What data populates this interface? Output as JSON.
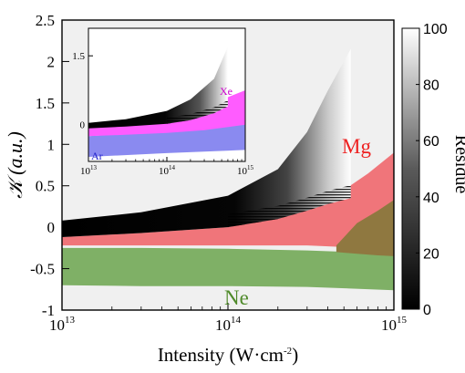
{
  "chart_data": [
    {
      "type": "area",
      "xlabel": "Intensity (W·cm",
      "xlabel_sup": "-2",
      "xlabel_close": ")",
      "ylabel": "𝒦 (a.u.)",
      "xscale": "log",
      "xlim": [
        10000000000000.0,
        1000000000000000.0
      ],
      "ylim": [
        -1,
        2.5
      ],
      "x_ticks": [
        {
          "base": "10",
          "exp": "13"
        },
        {
          "base": "10",
          "exp": "14"
        },
        {
          "base": "10",
          "exp": "15"
        }
      ],
      "y_ticks": [
        "-1",
        "-0.5",
        "0",
        "0.5",
        "1",
        "1.5",
        "2",
        "2.5"
      ],
      "background": "#f0f0f0",
      "series": [
        {
          "name": "Ne",
          "color": "#7fb066",
          "x": [
            10000000000000.0,
            30000000000000.0,
            100000000000000.0,
            300000000000000.0,
            1000000000000000.0
          ],
          "upper": [
            -0.25,
            -0.25,
            -0.26,
            -0.28,
            -0.32
          ],
          "lower": [
            -0.7,
            -0.71,
            -0.71,
            -0.72,
            -0.76
          ]
        },
        {
          "name": "Mg",
          "color": "#f0757a",
          "x": [
            10000000000000.0,
            30000000000000.0,
            100000000000000.0,
            200000000000000.0,
            300000000000000.0,
            500000000000000.0,
            700000000000000.0,
            1000000000000000.0
          ],
          "upper": [
            -0.12,
            -0.07,
            0.0,
            0.12,
            0.22,
            0.45,
            0.65,
            0.9
          ],
          "lower": [
            -0.22,
            -0.22,
            -0.22,
            -0.22,
            -0.22,
            -0.24,
            -0.26,
            -0.28
          ]
        },
        {
          "name": "Mg-overlap",
          "color": "#8f7840",
          "x": [
            450000000000000.0,
            600000000000000.0,
            800000000000000.0,
            1000000000000000.0
          ],
          "upper": [
            -0.22,
            0.05,
            0.2,
            0.33
          ],
          "lower": [
            -0.3,
            -0.32,
            -0.34,
            -0.35
          ]
        },
        {
          "name": "residue-map",
          "x": [
            10000000000000.0,
            30000000000000.0,
            100000000000000.0,
            200000000000000.0,
            300000000000000.0,
            400000000000000.0,
            550000000000000.0
          ],
          "upper": [
            0.08,
            0.18,
            0.38,
            0.7,
            1.15,
            1.65,
            2.15
          ],
          "lower": [
            -0.12,
            -0.07,
            0.0,
            0.1,
            0.2,
            0.28,
            0.35
          ]
        }
      ]
    },
    {
      "type": "area",
      "role": "inset",
      "xscale": "log",
      "xlim": [
        10000000000000.0,
        1000000000000000.0
      ],
      "ylim": [
        -0.8,
        2.1
      ],
      "x_ticks": [
        {
          "base": "10",
          "exp": "13"
        },
        {
          "base": "10",
          "exp": "14"
        },
        {
          "base": "10",
          "exp": "15"
        }
      ],
      "y_ticks": [
        "0",
        "1.5"
      ],
      "series": [
        {
          "name": "Ar",
          "color": "#8a8af0",
          "x": [
            10000000000000.0,
            100000000000000.0,
            1000000000000000.0
          ],
          "upper": [
            -0.25,
            -0.15,
            0.15
          ],
          "lower": [
            -0.7,
            -0.62,
            -0.55
          ]
        },
        {
          "name": "Xe",
          "color": "#ff5cff",
          "x": [
            10000000000000.0,
            30000000000000.0,
            100000000000000.0,
            300000000000000.0,
            1000000000000000.0
          ],
          "upper": [
            -0.02,
            0.05,
            0.18,
            0.4,
            0.75
          ],
          "lower": [
            -0.25,
            -0.22,
            -0.18,
            -0.12,
            0.0
          ]
        },
        {
          "name": "residue-map",
          "x": [
            10000000000000.0,
            30000000000000.0,
            100000000000000.0,
            200000000000000.0,
            400000000000000.0,
            600000000000000.0
          ],
          "upper": [
            0.04,
            0.12,
            0.3,
            0.55,
            1.0,
            1.7
          ],
          "lower": [
            -0.08,
            -0.04,
            0.02,
            0.1,
            0.25,
            0.4
          ]
        }
      ]
    }
  ],
  "colorbar": {
    "label": "Residue",
    "ticks": [
      "0",
      "20",
      "40",
      "60",
      "80",
      "100"
    ],
    "range": [
      0,
      100
    ]
  }
}
